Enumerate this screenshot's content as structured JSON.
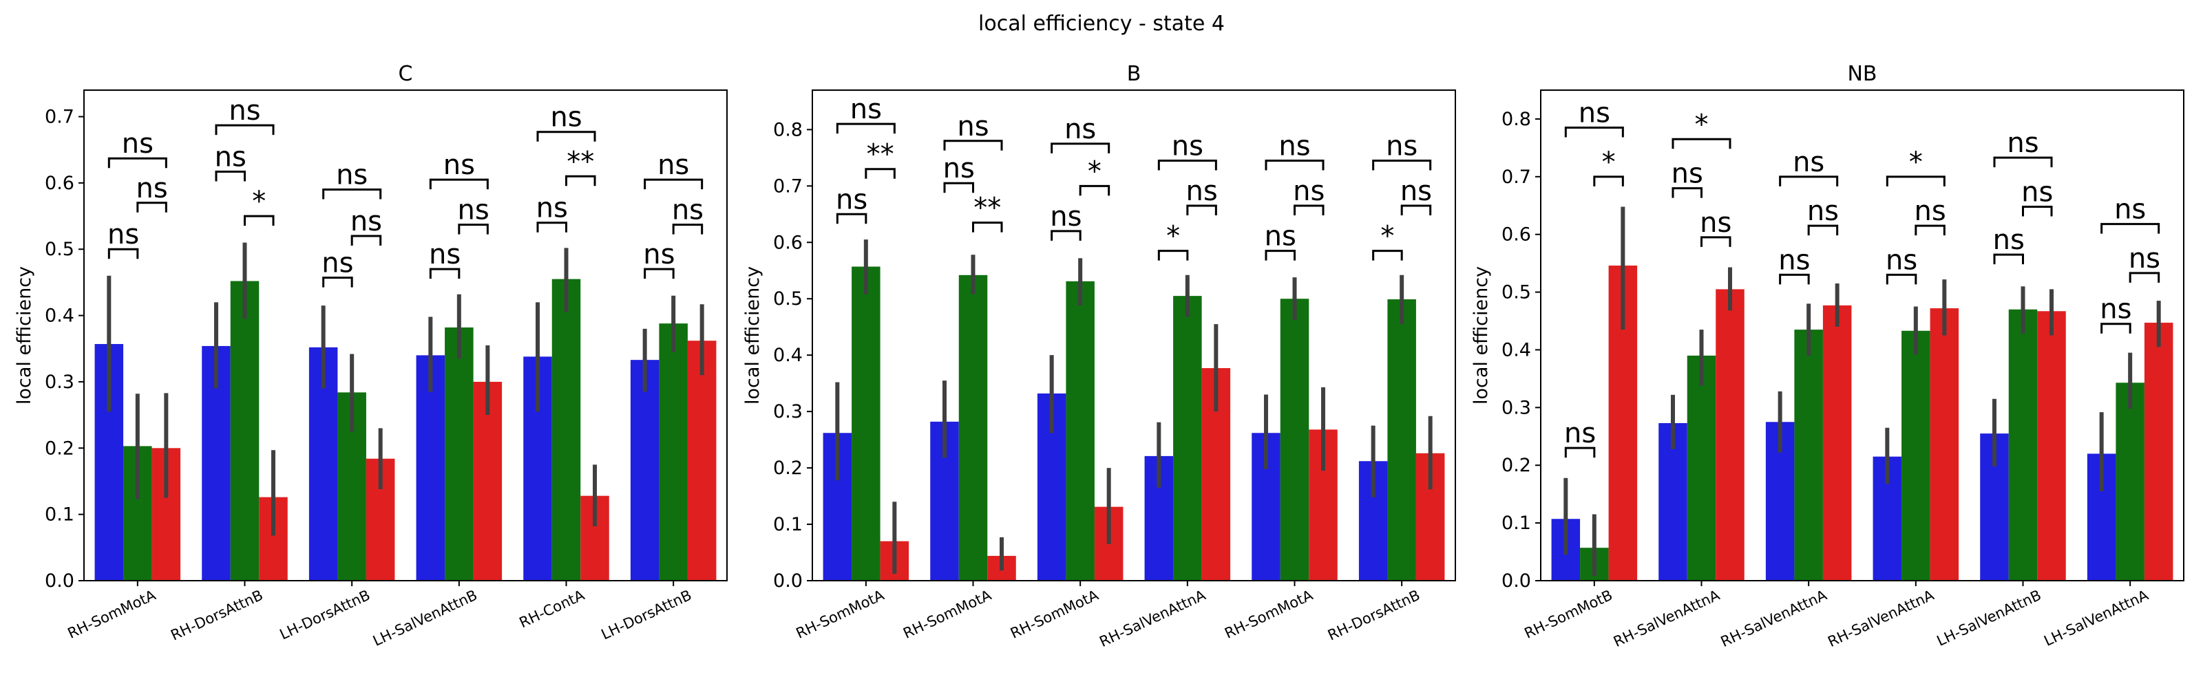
{
  "suptitle": "local efficiency - state 4",
  "chart_data": [
    {
      "type": "bar",
      "title": "C",
      "ylabel": "local efficiency",
      "xlabel": "",
      "ylim": [
        0,
        0.74
      ],
      "yticks": [
        0.0,
        0.1,
        0.2,
        0.3,
        0.4,
        0.5,
        0.6,
        0.7
      ],
      "categories": [
        "RH-SomMotA",
        "RH-DorsAttnB",
        "LH-DorsAttnB",
        "LH-SalVenAttnB",
        "RH-ContA",
        "LH-DorsAttnB"
      ],
      "series": [
        {
          "color": "#2020e0",
          "values": [
            0.357,
            0.354,
            0.352,
            0.34,
            0.338,
            0.333
          ],
          "err_low": [
            0.255,
            0.29,
            0.29,
            0.285,
            0.255,
            0.285
          ],
          "err_high": [
            0.46,
            0.42,
            0.415,
            0.398,
            0.42,
            0.38
          ]
        },
        {
          "color": "#107010",
          "values": [
            0.203,
            0.452,
            0.284,
            0.382,
            0.455,
            0.388
          ],
          "err_low": [
            0.123,
            0.395,
            0.225,
            0.335,
            0.405,
            0.345
          ],
          "err_high": [
            0.282,
            0.51,
            0.342,
            0.432,
            0.502,
            0.43
          ]
        },
        {
          "color": "#e02020",
          "values": [
            0.2,
            0.126,
            0.184,
            0.3,
            0.128,
            0.362
          ],
          "err_low": [
            0.125,
            0.068,
            0.138,
            0.25,
            0.082,
            0.31
          ],
          "err_high": [
            0.283,
            0.197,
            0.23,
            0.355,
            0.175,
            0.417
          ]
        }
      ],
      "annotations": [
        {
          "cat": 0,
          "from": 0,
          "to": 1,
          "y": 0.5,
          "label": "ns"
        },
        {
          "cat": 0,
          "from": 1,
          "to": 2,
          "y": 0.57,
          "label": "ns"
        },
        {
          "cat": 0,
          "from": 0,
          "to": 2,
          "y": 0.637,
          "label": "ns"
        },
        {
          "cat": 1,
          "from": 1,
          "to": 2,
          "y": 0.55,
          "label": "*"
        },
        {
          "cat": 1,
          "from": 0,
          "to": 1,
          "y": 0.617,
          "label": "ns"
        },
        {
          "cat": 1,
          "from": 0,
          "to": 2,
          "y": 0.687,
          "label": "ns"
        },
        {
          "cat": 2,
          "from": 0,
          "to": 1,
          "y": 0.457,
          "label": "ns"
        },
        {
          "cat": 2,
          "from": 1,
          "to": 2,
          "y": 0.52,
          "label": "ns"
        },
        {
          "cat": 2,
          "from": 0,
          "to": 2,
          "y": 0.59,
          "label": "ns"
        },
        {
          "cat": 3,
          "from": 0,
          "to": 1,
          "y": 0.47,
          "label": "ns"
        },
        {
          "cat": 3,
          "from": 1,
          "to": 2,
          "y": 0.537,
          "label": "ns"
        },
        {
          "cat": 3,
          "from": 0,
          "to": 2,
          "y": 0.605,
          "label": "ns"
        },
        {
          "cat": 4,
          "from": 0,
          "to": 1,
          "y": 0.54,
          "label": "ns"
        },
        {
          "cat": 4,
          "from": 1,
          "to": 2,
          "y": 0.61,
          "label": "**"
        },
        {
          "cat": 4,
          "from": 0,
          "to": 2,
          "y": 0.677,
          "label": "ns"
        },
        {
          "cat": 5,
          "from": 0,
          "to": 1,
          "y": 0.47,
          "label": "ns"
        },
        {
          "cat": 5,
          "from": 1,
          "to": 2,
          "y": 0.537,
          "label": "ns"
        },
        {
          "cat": 5,
          "from": 0,
          "to": 2,
          "y": 0.605,
          "label": "ns"
        }
      ]
    },
    {
      "type": "bar",
      "title": "B",
      "ylabel": "local efficiency",
      "xlabel": "",
      "ylim": [
        0,
        0.87
      ],
      "yticks": [
        0.0,
        0.1,
        0.2,
        0.3,
        0.4,
        0.5,
        0.6,
        0.7,
        0.8
      ],
      "categories": [
        "RH-SomMotA",
        "RH-SomMotA",
        "RH-SomMotA",
        "RH-SalVenAttnA",
        "RH-SomMotA",
        "RH-DorsAttnB"
      ],
      "series": [
        {
          "color": "#2020e0",
          "values": [
            0.262,
            0.282,
            0.332,
            0.221,
            0.262,
            0.212
          ],
          "err_low": [
            0.178,
            0.218,
            0.262,
            0.165,
            0.198,
            0.148
          ],
          "err_high": [
            0.352,
            0.355,
            0.4,
            0.281,
            0.33,
            0.275
          ]
        },
        {
          "color": "#107010",
          "values": [
            0.557,
            0.542,
            0.531,
            0.505,
            0.5,
            0.499
          ],
          "err_low": [
            0.508,
            0.508,
            0.488,
            0.468,
            0.462,
            0.455
          ],
          "err_high": [
            0.605,
            0.578,
            0.572,
            0.542,
            0.538,
            0.542
          ]
        },
        {
          "color": "#e02020",
          "values": [
            0.07,
            0.044,
            0.131,
            0.377,
            0.268,
            0.226
          ],
          "err_low": [
            0.012,
            0.018,
            0.065,
            0.3,
            0.195,
            0.162
          ],
          "err_high": [
            0.14,
            0.077,
            0.2,
            0.455,
            0.343,
            0.292
          ]
        }
      ],
      "annotations": [
        {
          "cat": 0,
          "from": 0,
          "to": 1,
          "y": 0.65,
          "label": "ns"
        },
        {
          "cat": 0,
          "from": 1,
          "to": 2,
          "y": 0.73,
          "label": "**"
        },
        {
          "cat": 0,
          "from": 0,
          "to": 2,
          "y": 0.81,
          "label": "ns"
        },
        {
          "cat": 1,
          "from": 1,
          "to": 2,
          "y": 0.635,
          "label": "**"
        },
        {
          "cat": 1,
          "from": 0,
          "to": 1,
          "y": 0.705,
          "label": "ns"
        },
        {
          "cat": 1,
          "from": 0,
          "to": 2,
          "y": 0.78,
          "label": "ns"
        },
        {
          "cat": 2,
          "from": 0,
          "to": 1,
          "y": 0.62,
          "label": "ns"
        },
        {
          "cat": 2,
          "from": 1,
          "to": 2,
          "y": 0.7,
          "label": "*"
        },
        {
          "cat": 2,
          "from": 0,
          "to": 2,
          "y": 0.775,
          "label": "ns"
        },
        {
          "cat": 3,
          "from": 0,
          "to": 1,
          "y": 0.585,
          "label": "*"
        },
        {
          "cat": 3,
          "from": 1,
          "to": 2,
          "y": 0.665,
          "label": "ns"
        },
        {
          "cat": 3,
          "from": 0,
          "to": 2,
          "y": 0.745,
          "label": "ns"
        },
        {
          "cat": 4,
          "from": 0,
          "to": 1,
          "y": 0.585,
          "label": "ns"
        },
        {
          "cat": 4,
          "from": 1,
          "to": 2,
          "y": 0.665,
          "label": "ns"
        },
        {
          "cat": 4,
          "from": 0,
          "to": 2,
          "y": 0.745,
          "label": "ns"
        },
        {
          "cat": 5,
          "from": 0,
          "to": 1,
          "y": 0.585,
          "label": "*"
        },
        {
          "cat": 5,
          "from": 1,
          "to": 2,
          "y": 0.665,
          "label": "ns"
        },
        {
          "cat": 5,
          "from": 0,
          "to": 2,
          "y": 0.745,
          "label": "ns"
        }
      ]
    },
    {
      "type": "bar",
      "title": "NB",
      "ylabel": "local efficiency",
      "xlabel": "",
      "ylim": [
        0,
        0.85
      ],
      "yticks": [
        0.0,
        0.1,
        0.2,
        0.3,
        0.4,
        0.5,
        0.6,
        0.7,
        0.8
      ],
      "categories": [
        "RH-SomMotB",
        "RH-SalVenAttnA",
        "RH-SalVenAttnA",
        "RH-SalVenAttnA",
        "LH-SalVenAttnB",
        "LH-SalVenAttnA"
      ],
      "series": [
        {
          "color": "#2020e0",
          "values": [
            0.107,
            0.273,
            0.275,
            0.215,
            0.255,
            0.22
          ],
          "err_low": [
            0.045,
            0.228,
            0.222,
            0.168,
            0.198,
            0.155
          ],
          "err_high": [
            0.178,
            0.322,
            0.328,
            0.265,
            0.315,
            0.292
          ]
        },
        {
          "color": "#107010",
          "values": [
            0.057,
            0.39,
            0.435,
            0.433,
            0.47,
            0.343
          ],
          "err_low": [
            0.008,
            0.338,
            0.39,
            0.392,
            0.428,
            0.298
          ],
          "err_high": [
            0.115,
            0.435,
            0.48,
            0.475,
            0.51,
            0.395
          ]
        },
        {
          "color": "#e02020",
          "values": [
            0.546,
            0.505,
            0.477,
            0.472,
            0.467,
            0.447
          ],
          "err_low": [
            0.435,
            0.468,
            0.44,
            0.425,
            0.425,
            0.405
          ],
          "err_high": [
            0.648,
            0.543,
            0.515,
            0.522,
            0.505,
            0.485
          ]
        }
      ],
      "annotations": [
        {
          "cat": 0,
          "from": 0,
          "to": 1,
          "y": 0.23,
          "label": "ns"
        },
        {
          "cat": 0,
          "from": 1,
          "to": 2,
          "y": 0.7,
          "label": "*"
        },
        {
          "cat": 0,
          "from": 0,
          "to": 2,
          "y": 0.785,
          "label": "ns"
        },
        {
          "cat": 1,
          "from": 0,
          "to": 1,
          "y": 0.68,
          "label": "ns"
        },
        {
          "cat": 1,
          "from": 1,
          "to": 2,
          "y": 0.595,
          "label": "ns"
        },
        {
          "cat": 1,
          "from": 0,
          "to": 2,
          "y": 0.765,
          "label": "*"
        },
        {
          "cat": 2,
          "from": 0,
          "to": 1,
          "y": 0.53,
          "label": "ns"
        },
        {
          "cat": 2,
          "from": 1,
          "to": 2,
          "y": 0.615,
          "label": "ns"
        },
        {
          "cat": 2,
          "from": 0,
          "to": 2,
          "y": 0.7,
          "label": "ns"
        },
        {
          "cat": 3,
          "from": 0,
          "to": 1,
          "y": 0.53,
          "label": "ns"
        },
        {
          "cat": 3,
          "from": 1,
          "to": 2,
          "y": 0.615,
          "label": "ns"
        },
        {
          "cat": 3,
          "from": 0,
          "to": 2,
          "y": 0.7,
          "label": "*"
        },
        {
          "cat": 4,
          "from": 0,
          "to": 1,
          "y": 0.565,
          "label": "ns"
        },
        {
          "cat": 4,
          "from": 1,
          "to": 2,
          "y": 0.648,
          "label": "ns"
        },
        {
          "cat": 4,
          "from": 0,
          "to": 2,
          "y": 0.733,
          "label": "ns"
        },
        {
          "cat": 5,
          "from": 0,
          "to": 1,
          "y": 0.445,
          "label": "ns"
        },
        {
          "cat": 5,
          "from": 1,
          "to": 2,
          "y": 0.533,
          "label": "ns"
        },
        {
          "cat": 5,
          "from": 0,
          "to": 2,
          "y": 0.618,
          "label": "ns"
        }
      ]
    }
  ]
}
